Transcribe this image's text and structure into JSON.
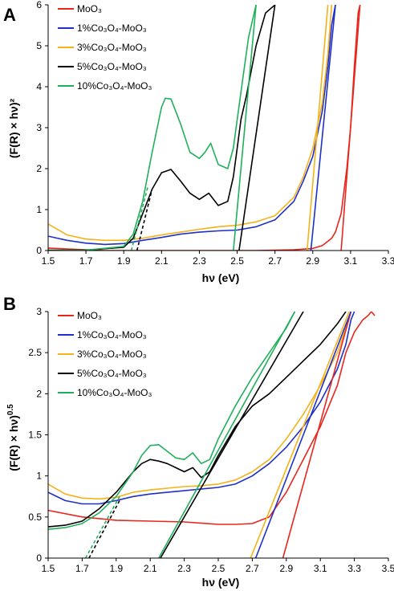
{
  "chart_data": [
    {
      "panel": "A",
      "type": "line",
      "xlabel": "hν (eV)",
      "ylabel": "(F(R) × hν)²",
      "xlim": [
        1.5,
        3.3
      ],
      "ylim": [
        0,
        6
      ],
      "xticks": [
        "1.5",
        "1.7",
        "1.9",
        "2.1",
        "2.3",
        "2.5",
        "2.7",
        "2.9",
        "3.1",
        "3.3"
      ],
      "yticks": [
        "0",
        "1",
        "2",
        "3",
        "4",
        "5",
        "6"
      ],
      "grid": false,
      "legend_position": "top-center",
      "series": [
        {
          "name": "MoO₃",
          "color": "#e8261c",
          "x": [
            1.5,
            1.6,
            1.7,
            1.8,
            1.9,
            2.0,
            2.2,
            2.4,
            2.6,
            2.8,
            2.9,
            2.95,
            3.0,
            3.02,
            3.05,
            3.08,
            3.1,
            3.12,
            3.14,
            3.15
          ],
          "y": [
            0.06,
            0.04,
            0.02,
            0.0,
            0.0,
            0.0,
            0.0,
            0.0,
            0.0,
            0.02,
            0.05,
            0.12,
            0.3,
            0.45,
            0.9,
            2.0,
            3.0,
            4.5,
            5.8,
            6.0
          ]
        },
        {
          "name": "1%Co₃O₄-MoO₃",
          "color": "#1f30c8",
          "x": [
            1.5,
            1.6,
            1.7,
            1.8,
            1.9,
            2.0,
            2.1,
            2.2,
            2.3,
            2.4,
            2.5,
            2.6,
            2.7,
            2.8,
            2.85,
            2.9,
            2.95,
            2.98,
            3.0,
            3.02
          ],
          "y": [
            0.35,
            0.25,
            0.18,
            0.15,
            0.17,
            0.25,
            0.32,
            0.4,
            0.45,
            0.48,
            0.5,
            0.58,
            0.75,
            1.2,
            1.7,
            2.3,
            3.4,
            4.5,
            5.5,
            6.0
          ]
        },
        {
          "name": "3%Co₃O₄-MoO₃",
          "color": "#f5b21a",
          "x": [
            1.5,
            1.6,
            1.7,
            1.8,
            1.9,
            2.0,
            2.1,
            2.2,
            2.3,
            2.4,
            2.5,
            2.6,
            2.7,
            2.8,
            2.85,
            2.9,
            2.95,
            2.98,
            3.0
          ],
          "y": [
            0.65,
            0.38,
            0.28,
            0.25,
            0.25,
            0.3,
            0.38,
            0.45,
            0.52,
            0.58,
            0.62,
            0.7,
            0.85,
            1.3,
            1.8,
            2.5,
            3.6,
            4.8,
            6.0
          ]
        },
        {
          "name": "5%Co₃O₄-MoO₃",
          "color": "#000000",
          "x": [
            1.5,
            1.7,
            1.9,
            1.95,
            2.0,
            2.05,
            2.1,
            2.15,
            2.2,
            2.25,
            2.3,
            2.35,
            2.4,
            2.45,
            2.48,
            2.5,
            2.52,
            2.55,
            2.6,
            2.65,
            2.7
          ],
          "y": [
            0.01,
            0.01,
            0.08,
            0.3,
            0.9,
            1.5,
            1.9,
            1.98,
            1.7,
            1.4,
            1.25,
            1.4,
            1.1,
            1.2,
            1.8,
            2.5,
            3.2,
            3.8,
            5.0,
            5.8,
            6.0
          ]
        },
        {
          "name": "10%Co₃O₄-MoO₃",
          "color": "#1fb05a",
          "x": [
            1.5,
            1.7,
            1.9,
            1.95,
            2.0,
            2.05,
            2.1,
            2.12,
            2.15,
            2.2,
            2.25,
            2.3,
            2.33,
            2.36,
            2.4,
            2.45,
            2.48,
            2.5,
            2.53,
            2.56,
            2.6
          ],
          "y": [
            0.0,
            0.01,
            0.1,
            0.4,
            1.2,
            2.4,
            3.5,
            3.72,
            3.7,
            3.1,
            2.4,
            2.25,
            2.4,
            2.62,
            2.1,
            2.0,
            2.5,
            3.2,
            4.2,
            5.2,
            6.0
          ]
        }
      ],
      "fit_lines": [
        {
          "color": "#e8261c",
          "style": "solid",
          "x": [
            3.05,
            3.15
          ],
          "y": [
            0.0,
            6.0
          ]
        },
        {
          "color": "#1f30c8",
          "style": "solid",
          "x": [
            2.89,
            3.02
          ],
          "y": [
            0.0,
            6.0
          ]
        },
        {
          "color": "#f5b21a",
          "style": "solid",
          "x": [
            2.87,
            2.98
          ],
          "y": [
            0.0,
            6.0
          ]
        },
        {
          "color": "#000000",
          "style": "solid",
          "x": [
            2.51,
            2.7
          ],
          "y": [
            0.0,
            6.0
          ]
        },
        {
          "color": "#1fb05a",
          "style": "solid",
          "x": [
            2.48,
            2.6
          ],
          "y": [
            0.0,
            6.0
          ]
        },
        {
          "color": "#000000",
          "style": "dashed",
          "x": [
            1.97,
            2.05
          ],
          "y": [
            0.0,
            1.5
          ]
        },
        {
          "color": "#1fb05a",
          "style": "dashed",
          "x": [
            1.94,
            2.03
          ],
          "y": [
            0.0,
            1.6
          ]
        }
      ]
    },
    {
      "panel": "B",
      "type": "line",
      "xlabel": "hν (eV)",
      "ylabel": "(F(R) × hν)0.5",
      "ylabel_base": "(F(R) × hν)",
      "ylabel_exponent": "0.5",
      "xlim": [
        1.5,
        3.5
      ],
      "ylim": [
        0,
        3
      ],
      "xticks": [
        "1.5",
        "1.7",
        "1.9",
        "2.1",
        "2.3",
        "2.5",
        "2.7",
        "2.9",
        "3.1",
        "3.3",
        "3.5"
      ],
      "yticks": [
        "0",
        "0.5",
        "1",
        "1.5",
        "2",
        "2.5",
        "3"
      ],
      "grid": false,
      "legend_position": "top-left",
      "series": [
        {
          "name": "MoO₃",
          "color": "#e8261c",
          "x": [
            1.5,
            1.7,
            1.9,
            2.1,
            2.3,
            2.5,
            2.6,
            2.7,
            2.8,
            2.9,
            3.0,
            3.1,
            3.2,
            3.25,
            3.3,
            3.35,
            3.38,
            3.4,
            3.42
          ],
          "y": [
            0.58,
            0.5,
            0.46,
            0.45,
            0.44,
            0.41,
            0.41,
            0.42,
            0.5,
            0.8,
            1.2,
            1.6,
            2.1,
            2.5,
            2.75,
            2.9,
            2.95,
            3.0,
            2.95
          ]
        },
        {
          "name": "1%Co₃O₄-MoO₃",
          "color": "#1f30c8",
          "x": [
            1.5,
            1.6,
            1.7,
            1.8,
            1.9,
            2.0,
            2.1,
            2.2,
            2.3,
            2.4,
            2.5,
            2.6,
            2.7,
            2.8,
            2.9,
            3.0,
            3.1,
            3.2,
            3.25,
            3.28,
            3.3
          ],
          "y": [
            0.8,
            0.7,
            0.66,
            0.66,
            0.7,
            0.75,
            0.78,
            0.8,
            0.82,
            0.84,
            0.86,
            0.9,
            1.0,
            1.15,
            1.35,
            1.6,
            1.9,
            2.3,
            2.6,
            2.9,
            3.0
          ]
        },
        {
          "name": "3%Co₃O₄-MoO₃",
          "color": "#f5b21a",
          "x": [
            1.5,
            1.6,
            1.7,
            1.8,
            1.9,
            2.0,
            2.1,
            2.2,
            2.3,
            2.4,
            2.5,
            2.6,
            2.7,
            2.8,
            2.9,
            3.0,
            3.1,
            3.2,
            3.25,
            3.28
          ],
          "y": [
            0.9,
            0.78,
            0.73,
            0.72,
            0.74,
            0.8,
            0.83,
            0.85,
            0.87,
            0.88,
            0.9,
            0.95,
            1.05,
            1.2,
            1.45,
            1.75,
            2.1,
            2.5,
            2.8,
            3.0
          ]
        },
        {
          "name": "5%Co₃O₄-MoO₃",
          "color": "#000000",
          "x": [
            1.5,
            1.6,
            1.7,
            1.8,
            1.9,
            2.0,
            2.05,
            2.1,
            2.15,
            2.2,
            2.25,
            2.3,
            2.35,
            2.4,
            2.45,
            2.5,
            2.6,
            2.7,
            2.8,
            2.9,
            3.0,
            3.1,
            3.2,
            3.25
          ],
          "y": [
            0.38,
            0.4,
            0.45,
            0.6,
            0.8,
            1.05,
            1.15,
            1.2,
            1.18,
            1.15,
            1.1,
            1.05,
            1.1,
            0.98,
            1.05,
            1.25,
            1.6,
            1.85,
            2.0,
            2.2,
            2.4,
            2.6,
            2.85,
            3.0
          ]
        },
        {
          "name": "10%Co₃O₄-MoO₃",
          "color": "#1fb05a",
          "x": [
            1.5,
            1.6,
            1.7,
            1.8,
            1.9,
            2.0,
            2.05,
            2.1,
            2.15,
            2.2,
            2.25,
            2.3,
            2.35,
            2.4,
            2.45,
            2.5,
            2.6,
            2.7,
            2.8,
            2.9,
            2.95
          ],
          "y": [
            0.35,
            0.37,
            0.42,
            0.55,
            0.75,
            1.05,
            1.25,
            1.37,
            1.38,
            1.3,
            1.22,
            1.2,
            1.28,
            1.15,
            1.2,
            1.45,
            1.85,
            2.2,
            2.5,
            2.8,
            3.0
          ]
        }
      ],
      "fit_lines": [
        {
          "color": "#e8261c",
          "style": "solid",
          "x": [
            2.88,
            3.28
          ],
          "y": [
            0.0,
            3.0
          ]
        },
        {
          "color": "#1f30c8",
          "style": "solid",
          "x": [
            2.72,
            3.28
          ],
          "y": [
            0.0,
            3.0
          ]
        },
        {
          "color": "#f5b21a",
          "style": "solid",
          "x": [
            2.69,
            3.27
          ],
          "y": [
            0.0,
            3.0
          ]
        },
        {
          "color": "#000000",
          "style": "solid",
          "x": [
            2.16,
            3.0
          ],
          "y": [
            0.0,
            3.0
          ]
        },
        {
          "color": "#1fb05a",
          "style": "solid",
          "x": [
            2.15,
            2.95
          ],
          "y": [
            0.0,
            3.0
          ]
        },
        {
          "color": "#000000",
          "style": "dashed",
          "x": [
            1.74,
            1.92
          ],
          "y": [
            0.0,
            0.7
          ]
        },
        {
          "color": "#1fb05a",
          "style": "dashed",
          "x": [
            1.72,
            1.92
          ],
          "y": [
            0.0,
            0.75
          ]
        }
      ]
    }
  ]
}
